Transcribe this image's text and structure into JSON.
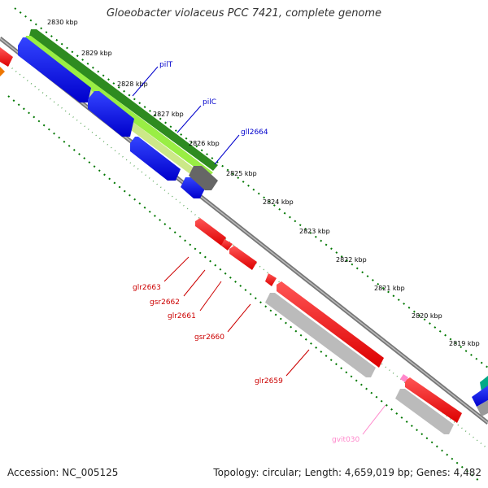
{
  "header": {
    "title": "Gloeobacter violaceus PCC 7421, complete genome"
  },
  "footer": {
    "accession": "Accession: NC_005125",
    "summary": "Topology: circular; Length: 4,659,019 bp; Genes: 4,482"
  },
  "map": {
    "kbp_ticks": [
      "2830 kbp",
      "2829 kbp",
      "2828 kbp",
      "2827 kbp",
      "2826 kbp",
      "2825 kbp",
      "2824 kbp",
      "2823 kbp",
      "2822 kbp",
      "2821 kbp",
      "2820 kbp",
      "2819 kbp"
    ],
    "forward_genes": [
      {
        "name": "pilT",
        "color": "#0000cc"
      },
      {
        "name": "pilC",
        "color": "#0000cc"
      },
      {
        "name": "gll2664",
        "color": "#0000cc"
      }
    ],
    "reverse_genes": [
      {
        "name": "glr2663",
        "color": "#cc0000"
      },
      {
        "name": "gsr2662",
        "color": "#cc0000"
      },
      {
        "name": "glr2661",
        "color": "#cc0000"
      },
      {
        "name": "gsr2660",
        "color": "#cc0000"
      },
      {
        "name": "glr2659",
        "color": "#cc0000"
      },
      {
        "name": "gvit030",
        "color": "#ff88cc"
      }
    ],
    "colors": {
      "cds": "#0000ee",
      "cds_reverse": "#ee0000",
      "green_feature": "#2e8b20",
      "light_green_feature": "#99ee44",
      "grey_feature": "#bbbbbb",
      "dark_grey_feature": "#666666",
      "tick_marks": "#007700"
    }
  }
}
